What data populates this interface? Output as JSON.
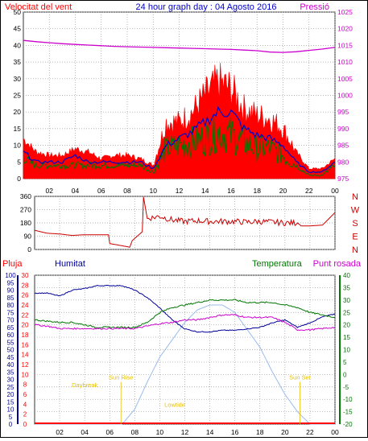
{
  "header": {
    "wind_label": "Velocitat del vent",
    "title": "24 hour graph day : 04 Agosto 2016",
    "pressure_label": "Pressió"
  },
  "x_ticks": [
    "02",
    "04",
    "06",
    "08",
    "10",
    "12",
    "14",
    "16",
    "18",
    "20",
    "22",
    "00"
  ],
  "compass": [
    "N",
    "W",
    "S",
    "E",
    "N"
  ],
  "bottom_header": {
    "rain": "Pluja",
    "humidity": "Humitat",
    "temperature": "Temperatura",
    "dew_point": "Punt rosada"
  },
  "annotations": {
    "daybreak": "Daybreak",
    "sunrise": "Sun Rise",
    "lowtide": "Lowtide",
    "sunset": "Sun Set"
  },
  "colors": {
    "wind_gust": "#ff0000",
    "wind_avg": "#0000cc",
    "wind_speed": "#007700",
    "pressure": "#cc00cc",
    "direction": "#cc0000",
    "humidity": "#000099",
    "temperature": "#007700",
    "dew_point": "#cc00cc",
    "solar": "#99bbee",
    "rain": "#ff0000",
    "annot": "#e8c000"
  },
  "chart_data": [
    {
      "type": "line",
      "title": "24 hour graph day : 04 Agosto 2016",
      "ylabel": "Velocitat del vent",
      "y2label": "Pressió",
      "ylim": [
        0,
        50
      ],
      "y_ticks": [
        0,
        5,
        10,
        15,
        20,
        25,
        30,
        35,
        40,
        45,
        50
      ],
      "y2lim": [
        975,
        1025
      ],
      "y2_ticks": [
        975,
        980,
        985,
        990,
        995,
        1000,
        1005,
        1010,
        1015,
        1020,
        1025
      ],
      "x_hours": [
        0,
        1,
        2,
        3,
        4,
        5,
        6,
        7,
        8,
        9,
        10,
        11,
        12,
        13,
        14,
        15,
        16,
        17,
        18,
        19,
        20,
        21,
        22,
        23,
        24
      ],
      "series": [
        {
          "name": "gust",
          "values": [
            12,
            8,
            7,
            7,
            9,
            8,
            6,
            7,
            7,
            6,
            4,
            17,
            17,
            20,
            25,
            29,
            27,
            21,
            19,
            18,
            15,
            8,
            3,
            3,
            6
          ]
        },
        {
          "name": "average",
          "values": [
            8,
            5,
            5,
            5,
            7,
            5,
            5,
            5,
            5,
            5,
            3,
            10,
            12,
            14,
            17,
            20,
            20,
            15,
            13,
            12,
            10,
            5,
            2,
            2,
            5
          ]
        },
        {
          "name": "speed",
          "values": [
            6,
            4,
            4,
            4,
            4,
            4,
            4,
            4,
            4,
            4,
            2,
            9,
            10,
            11,
            12,
            14,
            13,
            11,
            9,
            9,
            7,
            4,
            1,
            1,
            4
          ]
        },
        {
          "name": "pressure",
          "values": [
            1016.5,
            1016.1,
            1015.8,
            1015.5,
            1015.3,
            1015.1,
            1014.9,
            1014.7,
            1014.6,
            1014.5,
            1014.4,
            1014.3,
            1014.2,
            1014.1,
            1014.0,
            1013.9,
            1013.8,
            1013.6,
            1013.4,
            1013.0,
            1012.9,
            1013.1,
            1013.5,
            1013.9,
            1014.4
          ]
        }
      ]
    },
    {
      "type": "line",
      "ylim": [
        0,
        360
      ],
      "y_ticks": [
        0,
        90,
        180,
        270,
        360
      ],
      "x_hours": [
        0,
        1,
        2,
        3,
        4,
        5,
        5.9,
        6.0,
        7,
        7.6,
        7.8,
        8.6,
        8.7,
        9,
        10,
        11,
        12,
        13,
        14,
        15,
        16,
        17,
        18,
        19,
        20,
        21,
        21.3,
        22,
        23,
        24
      ],
      "series": [
        {
          "name": "direction",
          "values": [
            130,
            110,
            105,
            95,
            100,
            100,
            100,
            40,
            25,
            15,
            60,
            120,
            355,
            210,
            225,
            200,
            190,
            195,
            190,
            190,
            190,
            185,
            190,
            185,
            180,
            180,
            160,
            160,
            165,
            250
          ]
        }
      ]
    },
    {
      "type": "line",
      "y_left_outer": {
        "ylim": [
          0,
          100
        ],
        "ticks": [
          0,
          5,
          10,
          15,
          20,
          25,
          30,
          35,
          40,
          45,
          50,
          55,
          60,
          65,
          70,
          75,
          80,
          85,
          90,
          95,
          100
        ]
      },
      "y_left_inner": {
        "ylim": [
          0,
          30
        ],
        "ticks": [
          0,
          2,
          4,
          6,
          8,
          10,
          12,
          14,
          16,
          18,
          20,
          22,
          24,
          26,
          28,
          30
        ]
      },
      "y_right": {
        "ylim": [
          -20,
          40
        ],
        "ticks": [
          -20,
          -15,
          -10,
          -5,
          0,
          5,
          10,
          15,
          20,
          25,
          30,
          35,
          40
        ]
      },
      "x_hours": [
        0,
        1,
        2,
        3,
        4,
        5,
        6,
        7,
        8,
        9,
        10,
        11,
        12,
        13,
        14,
        15,
        16,
        17,
        18,
        19,
        20,
        21,
        22,
        23,
        24
      ],
      "series": [
        {
          "name": "humidity",
          "axis": "left_outer",
          "values": [
            88,
            88,
            86,
            90,
            91,
            93,
            93,
            93,
            90,
            85,
            78,
            70,
            64,
            62,
            62,
            63,
            63,
            64,
            65,
            68,
            70,
            65,
            68,
            72,
            74
          ]
        },
        {
          "name": "temperature",
          "axis": "right",
          "values": [
            22,
            21.5,
            21,
            21,
            20,
            19,
            19,
            19,
            19,
            21,
            25,
            27,
            28,
            29,
            30,
            30,
            30,
            29,
            29,
            29,
            28,
            27,
            25,
            24,
            23
          ]
        },
        {
          "name": "dew_point",
          "axis": "right",
          "values": [
            20,
            19.5,
            18.5,
            18.5,
            18.5,
            18.5,
            18.5,
            18.5,
            18.5,
            19.5,
            20.5,
            21,
            22,
            22,
            23,
            24,
            24,
            23,
            23,
            23,
            21,
            18,
            18,
            18.5,
            19
          ]
        },
        {
          "name": "solar",
          "axis": "right",
          "values": [
            -20,
            -20,
            -20,
            -20,
            -20,
            -20,
            -20,
            -20,
            -14,
            -3,
            7,
            14,
            21,
            26,
            28,
            28,
            25,
            18,
            11,
            1,
            -8,
            -15,
            -20,
            -20,
            -20
          ]
        },
        {
          "name": "rain",
          "axis": "left_inner",
          "values": [
            0,
            0,
            0,
            0,
            0,
            0,
            0,
            0,
            0,
            0,
            0,
            0,
            0,
            0,
            0,
            0,
            0,
            0,
            0,
            0,
            0,
            0,
            0,
            0,
            0
          ]
        }
      ]
    }
  ]
}
